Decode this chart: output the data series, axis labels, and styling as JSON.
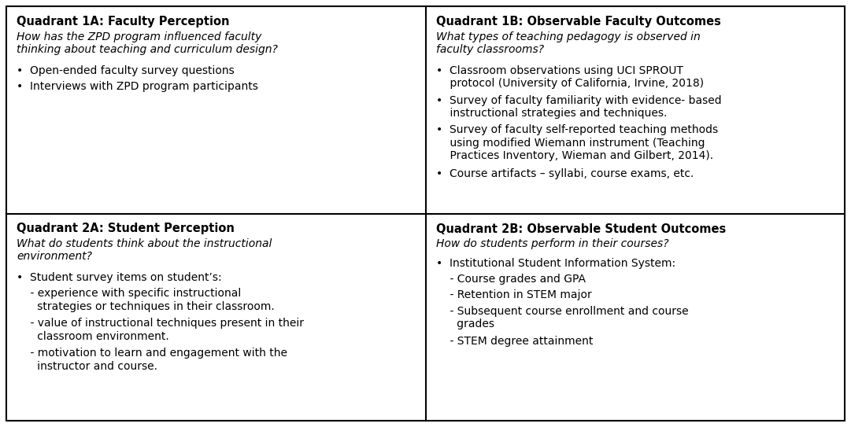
{
  "background_color": "#ffffff",
  "border_color": "#000000",
  "quadrants": [
    {
      "id": "1A",
      "title": "Quadrant 1A: Faculty Perception",
      "question": "How has the ZPD program influenced faculty\nthinking about teaching and curriculum design?",
      "content": [
        {
          "type": "bullet",
          "text": "•  Open-ended faculty survey questions"
        },
        {
          "type": "bullet",
          "text": "•  Interviews with ZPD program participants"
        }
      ],
      "col": 0,
      "row": 0
    },
    {
      "id": "1B",
      "title": "Quadrant 1B: Observable Faculty Outcomes",
      "question": "What types of teaching pedagogy is observed in\nfaculty classrooms?",
      "content": [
        {
          "type": "bullet",
          "text": "•  Classroom observations using UCI SPROUT\n    protocol (University of California, Irvine, 2018)"
        },
        {
          "type": "bullet",
          "text": "•  Survey of faculty familiarity with evidence- based\n    instructional strategies and techniques."
        },
        {
          "type": "bullet",
          "text": "•  Survey of faculty self-reported teaching methods\n    using modified Wiemann instrument (Teaching\n    Practices Inventory, Wieman and Gilbert, 2014)."
        },
        {
          "type": "bullet",
          "text": "•  Course artifacts – syllabi, course exams, etc."
        }
      ],
      "col": 1,
      "row": 0
    },
    {
      "id": "2A",
      "title": "Quadrant 2A: Student Perception",
      "question": "What do students think about the instructional\nenvironment?",
      "content": [
        {
          "type": "bullet",
          "text": "•  Student survey items on student’s:"
        },
        {
          "type": "sub",
          "text": "    - experience with specific instructional\n      strategies or techniques in their classroom."
        },
        {
          "type": "sub",
          "text": "    - value of instructional techniques present in their\n      classroom environment."
        },
        {
          "type": "sub",
          "text": "    - motivation to learn and engagement with the\n      instructor and course."
        }
      ],
      "col": 0,
      "row": 1
    },
    {
      "id": "2B",
      "title": "Quadrant 2B: Observable Student Outcomes",
      "question": "How do students perform in their courses?",
      "content": [
        {
          "type": "bullet",
          "text": "•  Institutional Student Information System:"
        },
        {
          "type": "sub",
          "text": "    - Course grades and GPA"
        },
        {
          "type": "sub",
          "text": "    - Retention in STEM major"
        },
        {
          "type": "sub",
          "text": "    - Subsequent course enrollment and course\n      grades"
        },
        {
          "type": "sub",
          "text": "    - STEM degree attainment"
        }
      ],
      "col": 1,
      "row": 1
    }
  ],
  "title_fontsize": 10.5,
  "question_fontsize": 10.0,
  "body_fontsize": 10.0,
  "lw": 1.5
}
